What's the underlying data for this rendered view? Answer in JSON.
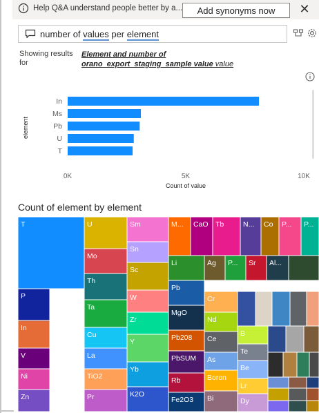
{
  "banner": {
    "text": "Help Q&A understand people better by a...",
    "button_label": "Add synonyms now",
    "close_glyph": "✕"
  },
  "query": {
    "word_1": "number of ",
    "word_2": "values",
    "word_3": " per ",
    "word_4": "element"
  },
  "showing": {
    "prefix": "Showing results for",
    "link_text_bold": "Element and number of orano_export_staging_sample value",
    "link_text_plain": "value"
  },
  "chart_data": [
    {
      "type": "bar",
      "orientation": "horizontal",
      "categories": [
        "In",
        "Ms",
        "Pb",
        "U",
        "T"
      ],
      "values": [
        8100,
        3100,
        3050,
        2800,
        2750
      ],
      "xlabel": "Count of value",
      "ylabel": "element",
      "xlim": [
        0,
        10000
      ],
      "x_ticks": [
        "0K",
        "5K",
        "10K"
      ],
      "bar_color": "#118dff",
      "grid": false
    },
    {
      "type": "treemap",
      "title": "Count of element by element",
      "cells": [
        {
          "label": "T",
          "color": "#118dff"
        },
        {
          "label": "P",
          "color": "#12239e"
        },
        {
          "label": "In",
          "color": "#e66c37"
        },
        {
          "label": "V",
          "color": "#6b007b"
        },
        {
          "label": "Ni",
          "color": "#e044a7"
        },
        {
          "label": "Zn",
          "color": "#744ec2"
        },
        {
          "label": "U",
          "color": "#d9b300"
        },
        {
          "label": "Mo",
          "color": "#d64550"
        },
        {
          "label": "Th",
          "color": "#197278"
        },
        {
          "label": "Ta",
          "color": "#1aab40"
        },
        {
          "label": "Cu",
          "color": "#15c6f4"
        },
        {
          "label": "La",
          "color": "#4092ff"
        },
        {
          "label": "TiO2",
          "color": "#ffa058"
        },
        {
          "label": "Pr",
          "color": "#be5dc9"
        },
        {
          "label": "Sm",
          "color": "#f472d0"
        },
        {
          "label": "Sn",
          "color": "#b5a1ff"
        },
        {
          "label": "Sc",
          "color": "#c4a200"
        },
        {
          "label": "W",
          "color": "#ff8080"
        },
        {
          "label": "Zr",
          "color": "#00db96"
        },
        {
          "label": "Y",
          "color": "#5cd667"
        },
        {
          "label": "Yb",
          "color": "#0e9fe1"
        },
        {
          "label": "K2O",
          "color": "#2d55cc"
        },
        {
          "label": "M...",
          "color": "#ff6a00"
        },
        {
          "label": "CaO",
          "color": "#b0007f"
        },
        {
          "label": "Tb",
          "color": "#e81c8c"
        },
        {
          "label": "N...",
          "color": "#563d99"
        },
        {
          "label": "Co",
          "color": "#ab6e00"
        },
        {
          "label": "P...",
          "color": "#f5488b"
        },
        {
          "label": "P...",
          "color": "#00b294"
        },
        {
          "label": "Li",
          "color": "#2b8f2b"
        },
        {
          "label": "Ag",
          "color": "#6e5b2d"
        },
        {
          "label": "P...",
          "color": "#20a03c"
        },
        {
          "label": "Sr",
          "color": "#c4172e"
        },
        {
          "label": "Al...",
          "color": "#203d4c"
        },
        {
          "label": "Pb",
          "color": "#1b5ca6"
        },
        {
          "label": "MgO",
          "color": "#13314d"
        },
        {
          "label": "Pb208",
          "color": "#d35400"
        },
        {
          "label": "PbSUM",
          "color": "#4a176a"
        },
        {
          "label": "Rb",
          "color": "#b3123d"
        },
        {
          "label": "Fe2O3",
          "color": "#0a3b73"
        },
        {
          "label": "Cr",
          "color": "#ffb152"
        },
        {
          "label": "Nd",
          "color": "#a5d610"
        },
        {
          "label": "Ce",
          "color": "#5f6368"
        },
        {
          "label": "As",
          "color": "#6fa3e8"
        },
        {
          "label": "Boron",
          "color": "#ffb300"
        },
        {
          "label": "Bi",
          "color": "#8f6a7a"
        },
        {
          "label": "B",
          "color": "#c5f035"
        },
        {
          "label": "Te",
          "color": "#78818d"
        },
        {
          "label": "Be",
          "color": "#8ab4f8"
        },
        {
          "label": "Lr",
          "color": "#ffcc33"
        },
        {
          "label": "Dy",
          "color": "#c89bd6"
        }
      ]
    }
  ]
}
